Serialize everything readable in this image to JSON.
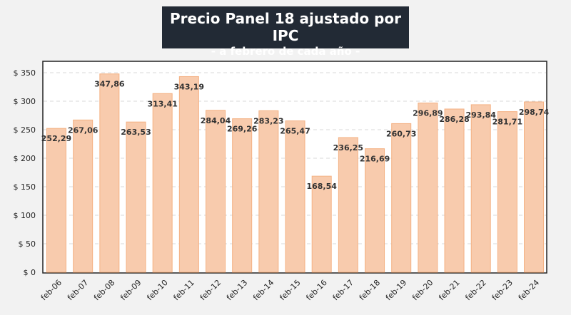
{
  "chart_data": {
    "type": "bar",
    "title": "Precio Panel 18 ajustado por IPC",
    "subtitle": "- a febrero de cada año -",
    "xlabel": "",
    "ylabel": "",
    "ylim": [
      0,
      350
    ],
    "yticks": [
      "$ 0",
      "$ 50",
      "$ 100",
      "$ 150",
      "$ 200",
      "$ 250",
      "$ 300",
      "$ 350"
    ],
    "grid": true,
    "categories": [
      "feb-06",
      "feb-07",
      "feb-08",
      "feb-09",
      "feb-10",
      "feb-11",
      "feb-12",
      "feb-13",
      "feb-14",
      "feb-15",
      "feb-16",
      "feb-17",
      "feb-18",
      "feb-19",
      "feb-20",
      "feb-21",
      "feb-22",
      "feb-23",
      "feb-24"
    ],
    "values": [
      252.29,
      267.06,
      347.86,
      263.53,
      313.41,
      343.19,
      284.04,
      269.26,
      283.23,
      265.47,
      168.54,
      236.25,
      216.69,
      260.73,
      296.89,
      286.28,
      293.84,
      281.71,
      298.74
    ],
    "data_labels": [
      "252,29",
      "267,06",
      "347,86",
      "263,53",
      "313,41",
      "343,19",
      "284,04",
      "269,26",
      "283,23",
      "265,47",
      "168,54",
      "236,25",
      "216,69",
      "260,73",
      "296,89",
      "286,28",
      "293,84",
      "281,71",
      "298,74"
    ],
    "bar_color": "#f8cbad",
    "title_bg": "#222a35"
  }
}
